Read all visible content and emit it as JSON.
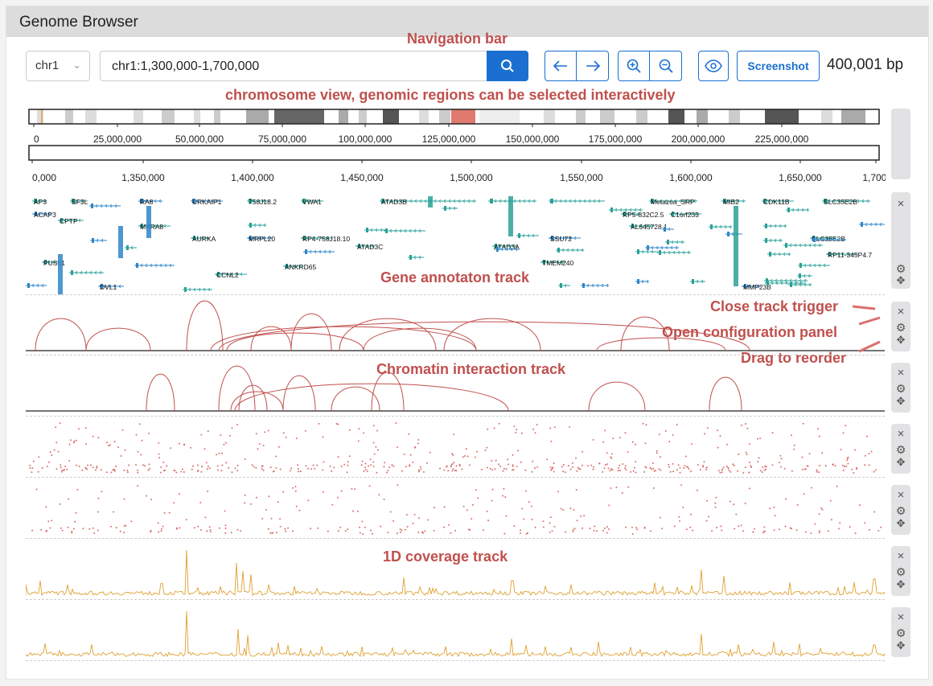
{
  "app": {
    "title": "Genome Browser"
  },
  "annotations": {
    "nav": "Navigation bar",
    "chrom": "chromosome view, genomic regions can be selected interactively",
    "gene": "Gene annotaton track",
    "close": "Close track trigger",
    "config": "Open configuration panel",
    "drag": "Drag to reorder",
    "chromatin": "Chromatin interaction track",
    "coverage": "1D coverage track"
  },
  "nav": {
    "chromosome": "chr1",
    "locus": "chr1:1,300,000-1,700,000",
    "screenshot_label": "Screenshot",
    "bp_count": "400,001 bp"
  },
  "ideogram_ticks": [
    "0",
    "25,000,000",
    "50,000,000",
    "75,000,000",
    "100,000,000",
    "125,000,000",
    "150,000,000",
    "175,000,000",
    "200,000,000",
    "225,000,000"
  ],
  "region_ticks": [
    "0,000",
    "1,350,000",
    "1,400,000",
    "1,450,000",
    "1,500,000",
    "1,550,000",
    "1,600,000",
    "1,650,000",
    "1,700,"
  ],
  "genes": [
    "AP3",
    "SF3L",
    "RA8",
    "URKAIP1",
    "758J18.2",
    "VWA1",
    "ATAD3B",
    "SSU72",
    "Metazoa_SRP",
    "MIB2",
    "CDK11B",
    "SLC35E2B",
    "ACAP3",
    "CPTP",
    "MXRA8",
    "AURKA",
    "MRPL20",
    "TM",
    "RP4-758J18.10",
    "ATAD3A",
    "C1orf233",
    "RP5-832C2.5",
    "AL645728.1",
    "PUSL1",
    "TAS1R3",
    "DVL1",
    "CCNL2",
    "ANKRD65",
    "ATAD3C",
    "TMEM240",
    "MMP23B",
    "RP11-345P4.7",
    "SLC35E2B"
  ],
  "colors": {
    "accent": "#1a6fd1",
    "annotation": "#c0504d",
    "gene": "#2aa198",
    "gene_blue": "#2f86c9",
    "arc": "#c0504d",
    "scatter": "#d9706b",
    "coverage": "#e0a030"
  },
  "icons": {
    "search": "search-icon",
    "left": "arrow-left-icon",
    "right": "arrow-right-icon",
    "zoom_in": "zoom-in-icon",
    "zoom_out": "zoom-out-icon",
    "view": "eye-icon",
    "close": "close-icon",
    "config": "gear-icon",
    "drag": "move-icon"
  }
}
